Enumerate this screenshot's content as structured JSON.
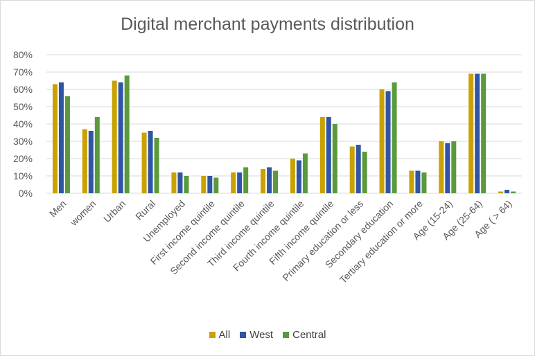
{
  "chart_data": {
    "type": "bar",
    "title": "Digital merchant payments distribution",
    "categories": [
      "Men",
      "women",
      "Urban",
      "Rural",
      "Unemployed",
      "First income quintile",
      "Second income quintile",
      "Third income quintile",
      "Fourth income quintile",
      "Fifth income quintile",
      "Primary education or less",
      "Secondary education",
      "Tertiary education or more",
      "Age (15-24)",
      "Age (25-64)",
      "Age ( > 64)"
    ],
    "series": [
      {
        "name": "All",
        "color": "#c9a100",
        "values": [
          63,
          37,
          65,
          35,
          12,
          10,
          12,
          14,
          20,
          44,
          27,
          60,
          13,
          30,
          69,
          1
        ]
      },
      {
        "name": "West",
        "color": "#2f55a4",
        "values": [
          64,
          36,
          64,
          36,
          12,
          10,
          12,
          15,
          19,
          44,
          28,
          59,
          13,
          29,
          69,
          2
        ]
      },
      {
        "name": "Central",
        "color": "#5b9a3c",
        "values": [
          56,
          44,
          68,
          32,
          10,
          9,
          15,
          13,
          23,
          40,
          24,
          64,
          12,
          30,
          69,
          1
        ]
      }
    ],
    "yticks": [
      "0%",
      "10%",
      "20%",
      "30%",
      "40%",
      "50%",
      "60%",
      "70%",
      "80%"
    ],
    "ylim": [
      0,
      80
    ],
    "grid": true,
    "legend_position": "bottom"
  }
}
